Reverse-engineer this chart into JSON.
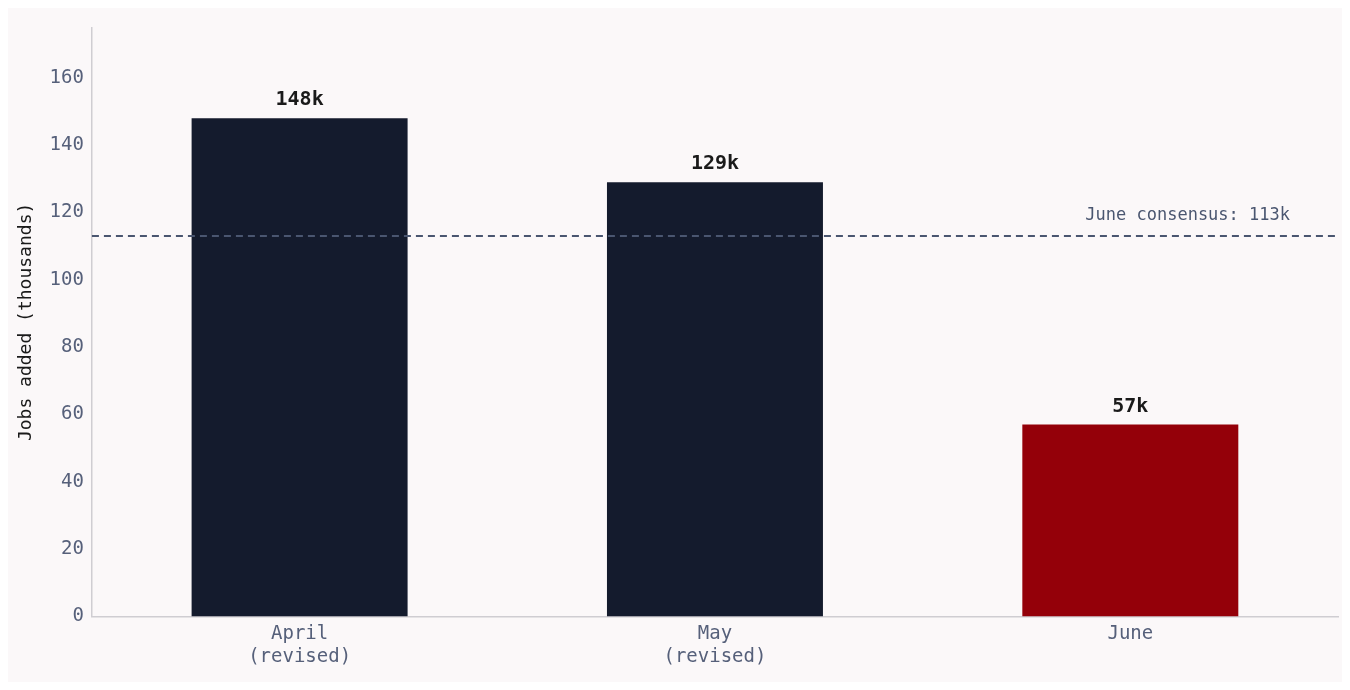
{
  "chart_data": {
    "type": "bar",
    "ylabel": "Jobs added (thousands)",
    "categories": [
      "April\n(revised)",
      "May\n(revised)",
      "June"
    ],
    "values": [
      148,
      129,
      57
    ],
    "colors": [
      "#141b2d",
      "#141b2d",
      "#940009"
    ],
    "value_labels": [
      "148k",
      "129k",
      "57k"
    ],
    "ylim": [
      0,
      175
    ],
    "yticks": [
      0,
      20,
      40,
      60,
      80,
      100,
      120,
      140,
      160
    ],
    "ref_lines": [
      {
        "axis": "y",
        "value": 113,
        "label": "June consensus: 113k",
        "color": "#4a5670",
        "line_style": "dashed"
      }
    ],
    "grid": false,
    "legend": false
  }
}
